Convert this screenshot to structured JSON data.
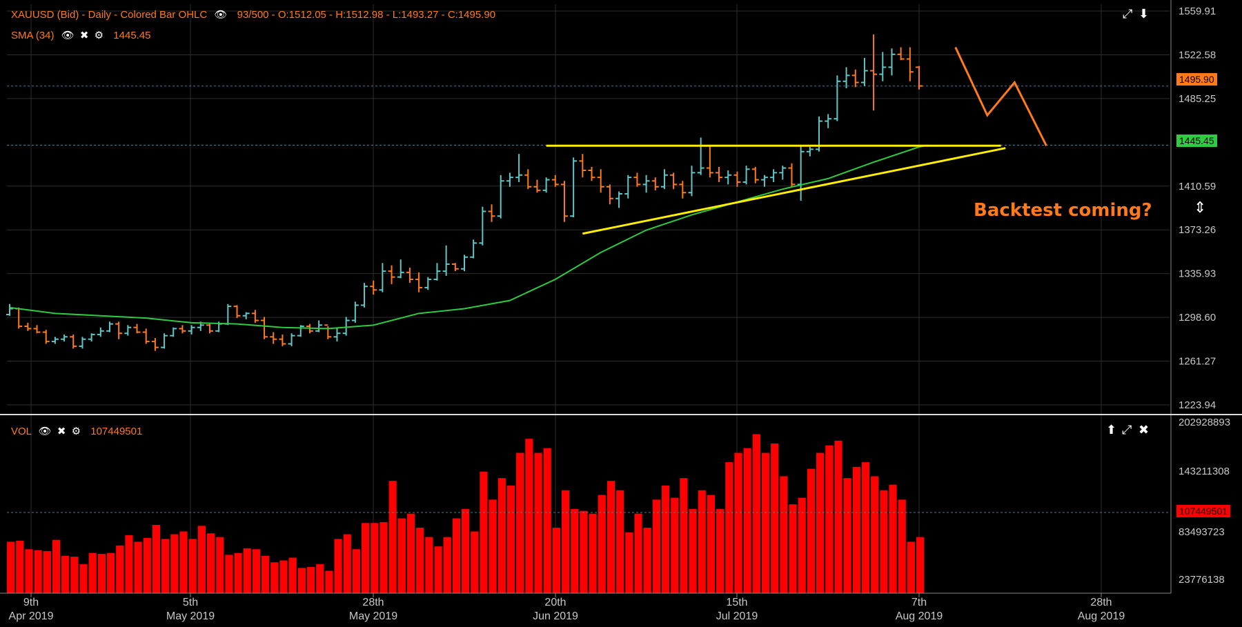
{
  "colors": {
    "background": "#000000",
    "grid": "#2e2e2e",
    "axis_text": "#c8c8c8",
    "up_bar": "#5fc7c7",
    "down_bar": "#ff7a1a",
    "sma": "#2ecc40",
    "trendline": "#ffee00",
    "projection": "#ff7a1a",
    "volume": "#ff0000",
    "legend_text": "#ff7a1a",
    "price_tag": "#ff7a1a",
    "sma_tag": "#2ecc40"
  },
  "price_panel": {
    "legend": {
      "title": "XAUUSD (Bid) - Daily - Colored Bar OHLC",
      "info": "93/500 - O:1512.05 - H:1512.98 - L:1493.27 - C:1495.90"
    },
    "sma_legend": {
      "label": "SMA (34)",
      "value": "1445.45"
    },
    "price_tag": "1495.90",
    "sma_tag": "1445.45",
    "annotation": "Backtest coming?",
    "y_ticks": [
      "1559.91",
      "1522.58",
      "1485.25",
      "1410.59",
      "1373.26",
      "1335.93",
      "1298.60",
      "1261.27",
      "1223.94"
    ]
  },
  "volume_panel": {
    "legend": {
      "label": "VOL",
      "value": "107449501"
    },
    "price_tag": "107449501",
    "y_ticks": [
      "202928893",
      "143211308",
      "83493723",
      "23776138"
    ]
  },
  "x_axis": [
    {
      "day": "9th",
      "month": "Apr 2019"
    },
    {
      "day": "5th",
      "month": "May 2019"
    },
    {
      "day": "28th",
      "month": "May 2019"
    },
    {
      "day": "20th",
      "month": "Jun 2019"
    },
    {
      "day": "15th",
      "month": "Jul 2019"
    },
    {
      "day": "7th",
      "month": "Aug 2019"
    },
    {
      "day": "28th",
      "month": "Aug 2019"
    }
  ],
  "chart_data": [
    {
      "type": "ohlc",
      "title": "XAUUSD (Bid) - Daily - Colored Bar OHLC",
      "ylim": [
        1223.94,
        1559.91
      ],
      "xlim": [
        0,
        127.9
      ],
      "bars": [
        [
          1301,
          1310,
          1300,
          1306
        ],
        [
          1306,
          1307,
          1289,
          1291
        ],
        [
          1291,
          1294,
          1287,
          1289
        ],
        [
          1289,
          1292,
          1285,
          1286
        ],
        [
          1286,
          1288,
          1276,
          1278
        ],
        [
          1278,
          1282,
          1276,
          1280
        ],
        [
          1280,
          1284,
          1278,
          1282
        ],
        [
          1282,
          1284,
          1272,
          1274
        ],
        [
          1274,
          1282,
          1272,
          1280
        ],
        [
          1280,
          1285,
          1278,
          1284
        ],
        [
          1284,
          1290,
          1282,
          1287
        ],
        [
          1287,
          1295,
          1286,
          1293
        ],
        [
          1293,
          1295,
          1280,
          1285
        ],
        [
          1285,
          1292,
          1283,
          1290
        ],
        [
          1290,
          1293,
          1285,
          1286
        ],
        [
          1286,
          1289,
          1276,
          1278
        ],
        [
          1278,
          1281,
          1270,
          1273
        ],
        [
          1273,
          1285,
          1272,
          1283
        ],
        [
          1283,
          1290,
          1282,
          1289
        ],
        [
          1289,
          1292,
          1285,
          1287
        ],
        [
          1287,
          1292,
          1284,
          1290
        ],
        [
          1290,
          1295,
          1287,
          1292
        ],
        [
          1292,
          1293,
          1285,
          1287
        ],
        [
          1287,
          1295,
          1286,
          1293
        ],
        [
          1293,
          1310,
          1292,
          1308
        ],
        [
          1308,
          1309,
          1298,
          1300
        ],
        [
          1300,
          1303,
          1297,
          1302
        ],
        [
          1302,
          1305,
          1294,
          1296
        ],
        [
          1296,
          1299,
          1280,
          1282
        ],
        [
          1282,
          1286,
          1276,
          1280
        ],
        [
          1280,
          1284,
          1274,
          1276
        ],
        [
          1276,
          1285,
          1274,
          1283
        ],
        [
          1283,
          1292,
          1282,
          1291
        ],
        [
          1291,
          1293,
          1285,
          1287
        ],
        [
          1287,
          1296,
          1286,
          1292
        ],
        [
          1292,
          1291,
          1280,
          1282
        ],
        [
          1282,
          1290,
          1278,
          1285
        ],
        [
          1285,
          1299,
          1283,
          1296
        ],
        [
          1296,
          1312,
          1294,
          1309
        ],
        [
          1309,
          1328,
          1307,
          1325
        ],
        [
          1325,
          1330,
          1318,
          1322
        ],
        [
          1322,
          1345,
          1320,
          1338
        ],
        [
          1338,
          1343,
          1327,
          1333
        ],
        [
          1333,
          1348,
          1332,
          1337
        ],
        [
          1337,
          1341,
          1328,
          1331
        ],
        [
          1331,
          1337,
          1320,
          1324
        ],
        [
          1324,
          1333,
          1322,
          1331
        ],
        [
          1331,
          1345,
          1330,
          1338
        ],
        [
          1338,
          1360,
          1334,
          1344
        ],
        [
          1344,
          1345,
          1338,
          1340
        ],
        [
          1340,
          1352,
          1338,
          1350
        ],
        [
          1350,
          1365,
          1349,
          1362
        ],
        [
          1362,
          1393,
          1360,
          1389
        ],
        [
          1389,
          1395,
          1380,
          1385
        ],
        [
          1385,
          1420,
          1383,
          1415
        ],
        [
          1415,
          1422,
          1410,
          1418
        ],
        [
          1418,
          1438,
          1414,
          1420
        ],
        [
          1420,
          1425,
          1408,
          1410
        ],
        [
          1410,
          1416,
          1405,
          1407
        ],
        [
          1407,
          1418,
          1405,
          1416
        ],
        [
          1416,
          1420,
          1410,
          1412
        ],
        [
          1412,
          1415,
          1380,
          1385
        ],
        [
          1385,
          1435,
          1384,
          1432
        ],
        [
          1432,
          1438,
          1418,
          1424
        ],
        [
          1424,
          1427,
          1415,
          1418
        ],
        [
          1418,
          1425,
          1405,
          1410
        ],
        [
          1410,
          1412,
          1395,
          1400
        ],
        [
          1400,
          1406,
          1392,
          1404
        ],
        [
          1404,
          1420,
          1400,
          1418
        ],
        [
          1418,
          1422,
          1410,
          1412
        ],
        [
          1412,
          1420,
          1405,
          1415
        ],
        [
          1415,
          1418,
          1407,
          1410
        ],
        [
          1410,
          1425,
          1408,
          1420
        ],
        [
          1420,
          1422,
          1408,
          1412
        ],
        [
          1412,
          1415,
          1400,
          1405
        ],
        [
          1405,
          1428,
          1402,
          1422
        ],
        [
          1422,
          1452,
          1420,
          1426
        ],
        [
          1426,
          1445,
          1418,
          1422
        ],
        [
          1422,
          1427,
          1414,
          1418
        ],
        [
          1418,
          1424,
          1412,
          1420
        ],
        [
          1420,
          1423,
          1410,
          1414
        ],
        [
          1414,
          1428,
          1412,
          1425
        ],
        [
          1425,
          1427,
          1413,
          1416
        ],
        [
          1416,
          1420,
          1410,
          1418
        ],
        [
          1418,
          1425,
          1414,
          1422
        ],
        [
          1422,
          1428,
          1416,
          1426
        ],
        [
          1426,
          1430,
          1410,
          1412
        ],
        [
          1412,
          1445,
          1398,
          1440
        ],
        [
          1440,
          1444,
          1436,
          1442
        ],
        [
          1442,
          1470,
          1440,
          1466
        ],
        [
          1466,
          1472,
          1460,
          1468
        ],
        [
          1468,
          1505,
          1466,
          1500
        ],
        [
          1500,
          1512,
          1494,
          1505
        ],
        [
          1505,
          1510,
          1495,
          1499
        ],
        [
          1499,
          1520,
          1496,
          1509
        ],
        [
          1509,
          1540,
          1475,
          1506
        ],
        [
          1506,
          1525,
          1500,
          1512
        ],
        [
          1512,
          1528,
          1505,
          1523
        ],
        [
          1523,
          1529,
          1518,
          1519
        ],
        [
          1519,
          1529,
          1500,
          1508
        ],
        [
          1512,
          1513,
          1493,
          1496
        ]
      ],
      "sma_34": [
        [
          0,
          1307
        ],
        [
          5,
          1302
        ],
        [
          10,
          1300
        ],
        [
          15,
          1298
        ],
        [
          20,
          1294
        ],
        [
          25,
          1293
        ],
        [
          30,
          1290
        ],
        [
          35,
          1289
        ],
        [
          40,
          1292
        ],
        [
          45,
          1302
        ],
        [
          50,
          1306
        ],
        [
          55,
          1313
        ],
        [
          60,
          1331
        ],
        [
          65,
          1354
        ],
        [
          70,
          1373
        ],
        [
          75,
          1386
        ],
        [
          80,
          1397
        ],
        [
          85,
          1408
        ],
        [
          90,
          1417
        ],
        [
          95,
          1431
        ],
        [
          100,
          1444
        ],
        [
          101,
          1445.45
        ]
      ],
      "trendlines": [
        [
          [
            59,
            1445
          ],
          [
            109,
            1445
          ]
        ],
        [
          [
            63,
            1370
          ],
          [
            109.5,
            1443
          ]
        ]
      ],
      "projection": [
        [
          104,
          1529
        ],
        [
          107.5,
          1471
        ],
        [
          110.5,
          1499
        ],
        [
          114,
          1445
        ]
      ]
    },
    {
      "type": "bar",
      "title": "VOL",
      "ylim": [
        0,
        202928893
      ],
      "values": [
        55,
        56,
        47,
        46,
        45,
        57,
        40,
        39,
        31,
        43,
        42,
        43,
        51,
        62,
        55,
        59,
        73,
        58,
        63,
        66,
        58,
        72,
        64,
        60,
        41,
        43,
        48,
        47,
        40,
        33,
        35,
        38,
        27,
        28,
        31,
        24,
        58,
        63,
        47,
        75,
        75,
        76,
        120,
        80,
        85,
        70,
        60,
        50,
        60,
        80,
        90,
        66,
        130,
        100,
        123,
        115,
        150,
        165,
        150,
        155,
        70,
        110,
        90,
        88,
        85,
        105,
        120,
        110,
        65,
        85,
        70,
        100,
        115,
        102,
        123,
        90,
        110,
        105,
        90,
        140,
        150,
        155,
        170,
        150,
        160,
        125,
        95,
        102,
        133,
        150,
        158,
        163,
        123,
        135,
        140,
        125,
        110,
        116,
        100,
        55,
        60
      ]
    }
  ]
}
